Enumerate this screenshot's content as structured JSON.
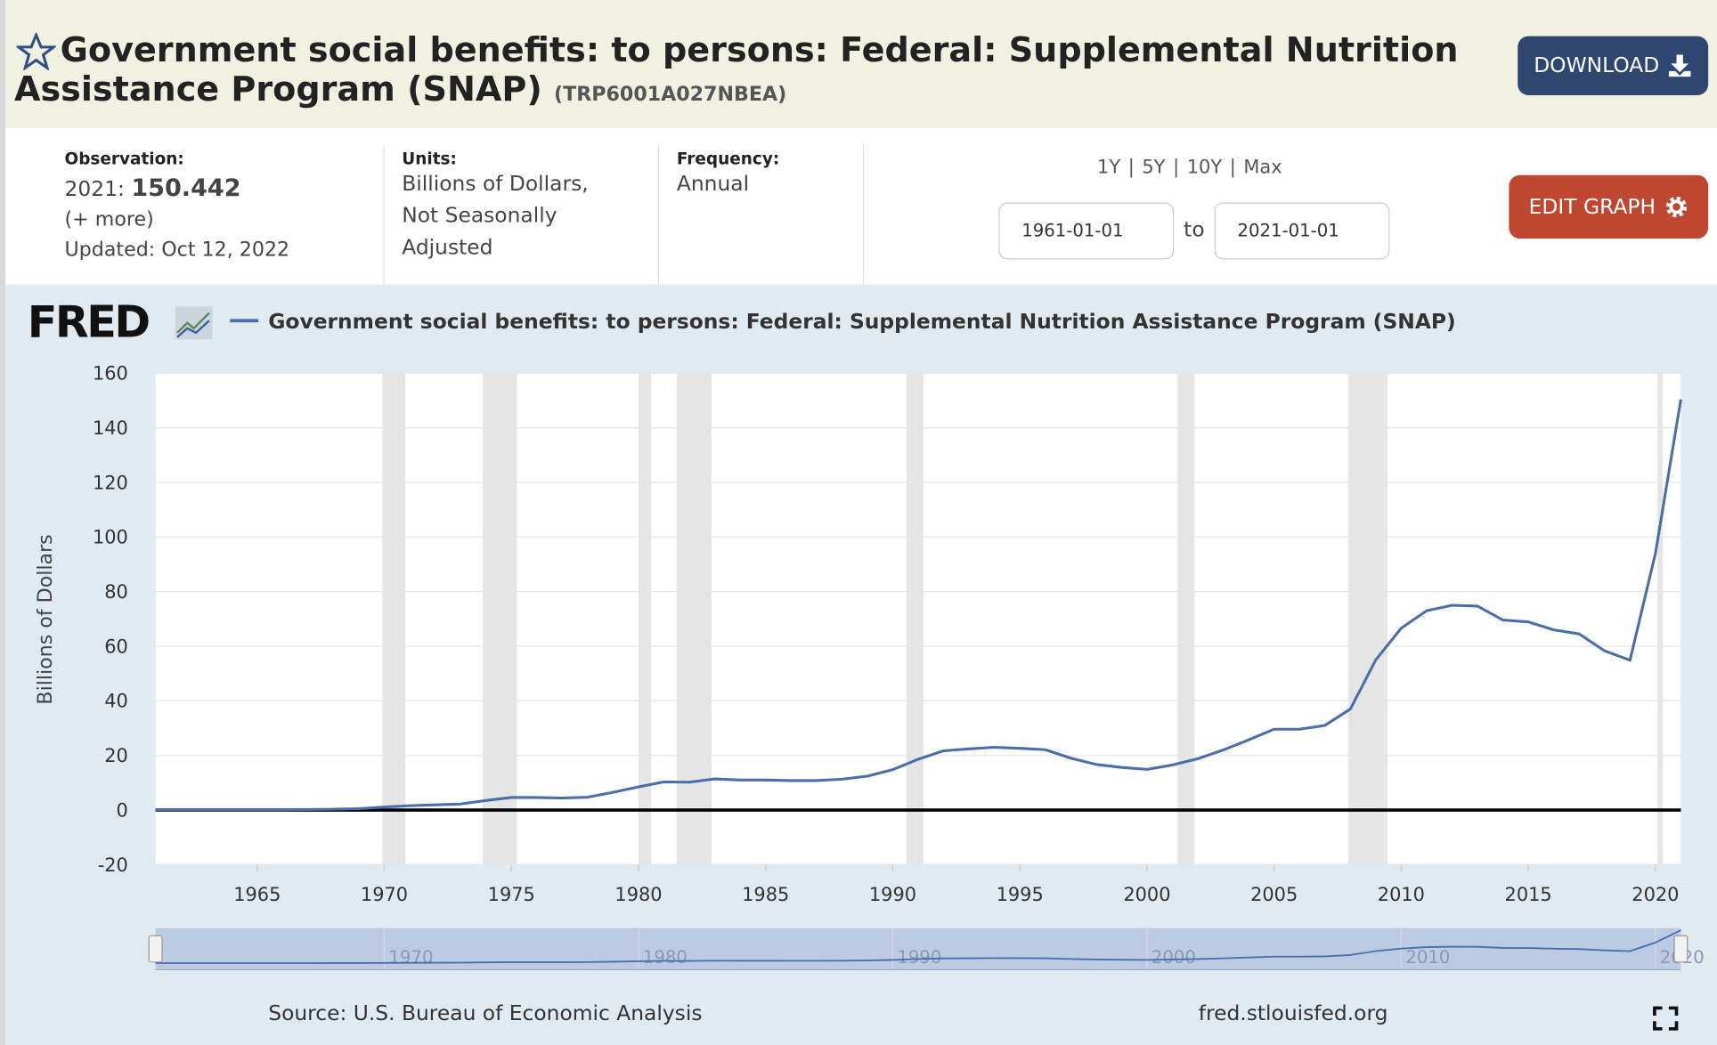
{
  "header": {
    "title": "Government social benefits: to persons: Federal: Supplemental Nutrition Assistance Program (SNAP)",
    "series_id": "(TRP6001A027NBEA)",
    "download": "DOWNLOAD"
  },
  "info": {
    "observation_label": "Observation:",
    "observation_date": "2021:",
    "observation_value": "150.442",
    "more": "(+ more)",
    "updated": "Updated: Oct 12, 2022",
    "units_label": "Units:",
    "units": [
      "Billions of Dollars,",
      "Not Seasonally",
      "Adjusted"
    ],
    "frequency_label": "Frequency:",
    "frequency": "Annual",
    "ranges": [
      "1Y",
      "5Y",
      "10Y",
      "Max"
    ],
    "separator": "|",
    "start_date": "1961-01-01",
    "to": "to",
    "end_date": "2021-01-01",
    "edit": "EDIT GRAPH"
  },
  "chart_data": {
    "type": "line",
    "logo": "FRED",
    "y_label": "Billions of Dollars",
    "x": [
      1961,
      1962,
      1963,
      1964,
      1965,
      1966,
      1967,
      1968,
      1969,
      1970,
      1971,
      1972,
      1973,
      1974,
      1975,
      1976,
      1977,
      1978,
      1979,
      1980,
      1981,
      1982,
      1983,
      1984,
      1985,
      1986,
      1987,
      1988,
      1989,
      1990,
      1991,
      1992,
      1993,
      1994,
      1995,
      1996,
      1997,
      1998,
      1999,
      2000,
      2001,
      2002,
      2003,
      2004,
      2005,
      2006,
      2007,
      2008,
      2009,
      2010,
      2011,
      2012,
      2013,
      2014,
      2015,
      2016,
      2017,
      2018,
      2019,
      2020,
      2021
    ],
    "series": [
      {
        "name": "Government social benefits: to persons: Federal: Supplemental Nutrition Assistance Program (SNAP)",
        "color": "#4a6ea9",
        "values": [
          0.1,
          0.1,
          0.1,
          0.1,
          0.1,
          0.1,
          0.2,
          0.3,
          0.5,
          1.1,
          1.6,
          1.9,
          2.2,
          3.5,
          4.6,
          4.6,
          4.4,
          4.7,
          6.5,
          8.5,
          10.3,
          10.2,
          11.4,
          11.0,
          11.0,
          10.8,
          10.8,
          11.3,
          12.4,
          14.8,
          18.6,
          21.7,
          22.4,
          23.0,
          22.6,
          22.1,
          19.0,
          16.7,
          15.6,
          14.9,
          16.5,
          18.8,
          22.0,
          25.7,
          29.6,
          29.6,
          31.0,
          37.0,
          55.0,
          66.6,
          73.0,
          75.0,
          74.7,
          69.6,
          68.9,
          66.0,
          64.5,
          58.3,
          54.9,
          94.0,
          150.442
        ]
      }
    ],
    "shading": [
      [
        1969.92,
        1970.83
      ],
      [
        1973.87,
        1975.21
      ],
      [
        1980.0,
        1980.5
      ],
      [
        1981.5,
        1982.87
      ],
      [
        1990.54,
        1991.21
      ],
      [
        2001.2,
        2001.87
      ],
      [
        2007.92,
        2009.46
      ],
      [
        2020.08,
        2020.29
      ]
    ],
    "shading_color": "#e5e5e5",
    "xlim": [
      1961,
      2021
    ],
    "ylim": [
      -20,
      160
    ],
    "xticks": [
      1965,
      1970,
      1975,
      1980,
      1985,
      1990,
      1995,
      2000,
      2005,
      2010,
      2015,
      2020
    ],
    "yticks": [
      -20,
      0,
      20,
      40,
      60,
      80,
      100,
      120,
      140,
      160
    ],
    "navigator_ticks": [
      1970,
      1980,
      1990,
      2000,
      2010,
      2020
    ],
    "grid": true,
    "source": "Source: U.S. Bureau of Economic Analysis",
    "site": "fred.stlouisfed.org"
  }
}
